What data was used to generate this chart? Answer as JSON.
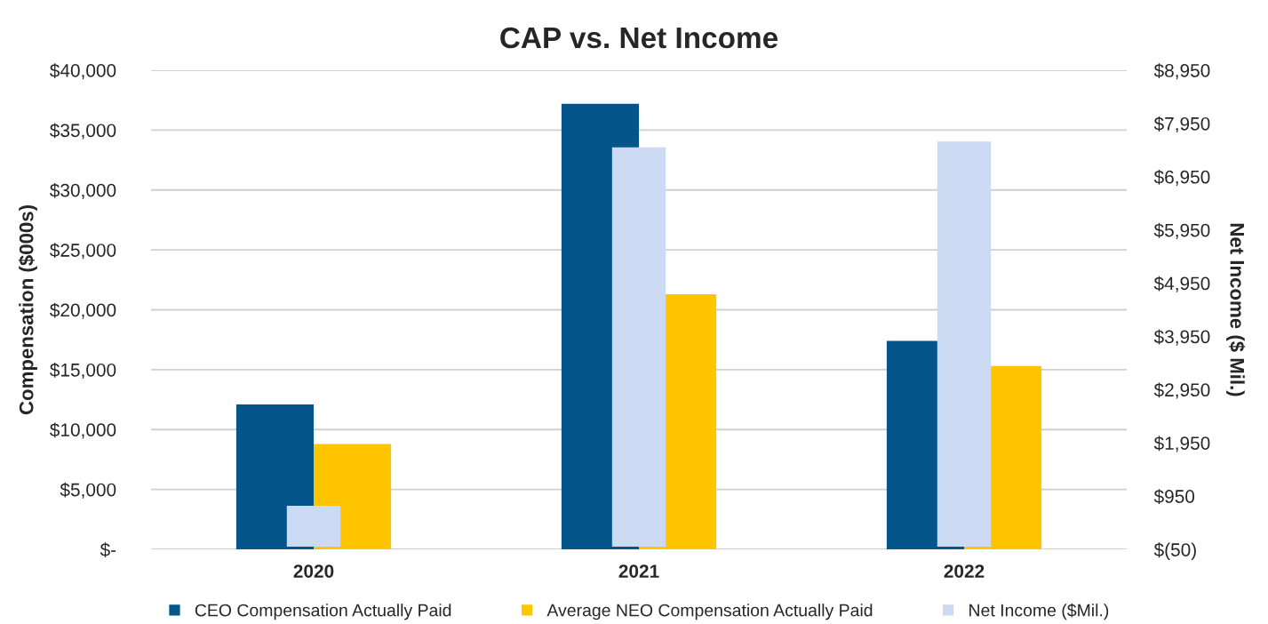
{
  "chart_data": {
    "type": "bar",
    "title": "CAP vs. Net Income",
    "ylabel": "Compensation ($000s)",
    "y2label": "Net Income ($ Mil.)",
    "categories": [
      "2020",
      "2021",
      "2022"
    ],
    "series": [
      {
        "name": "CEO Compensation Actually Paid",
        "color": "#04558a",
        "values": [
          12100,
          37200,
          17400
        ]
      },
      {
        "name": "Average NEO Compensation Actually Paid",
        "color": "#ffc600",
        "values": [
          8800,
          21300,
          15300
        ]
      },
      {
        "name": "Net Income ($Mil.)",
        "color": "#ccdaf3",
        "values": [
          770,
          7500,
          7610
        ],
        "axis": "y2"
      }
    ],
    "ylim": [
      0,
      40000
    ],
    "yticks": [
      {
        "value": 0,
        "label": "$-"
      },
      {
        "value": 5000,
        "label": "$5,000"
      },
      {
        "value": 10000,
        "label": "$10,000"
      },
      {
        "value": 15000,
        "label": "$15,000"
      },
      {
        "value": 20000,
        "label": "$20,000"
      },
      {
        "value": 25000,
        "label": "$25,000"
      },
      {
        "value": 30000,
        "label": "$30,000"
      },
      {
        "value": 35000,
        "label": "$35,000"
      },
      {
        "value": 40000,
        "label": "$40,000"
      }
    ],
    "y2lim": [
      -50,
      8950
    ],
    "y2ticks": [
      {
        "value": -50,
        "label": "$(50)"
      },
      {
        "value": 950,
        "label": "$950"
      },
      {
        "value": 1950,
        "label": "$1,950"
      },
      {
        "value": 2950,
        "label": "$2,950"
      },
      {
        "value": 3950,
        "label": "$3,950"
      },
      {
        "value": 4950,
        "label": "$4,950"
      },
      {
        "value": 5950,
        "label": "$5,950"
      },
      {
        "value": 6950,
        "label": "$6,950"
      },
      {
        "value": 7950,
        "label": "$7,950"
      },
      {
        "value": 8950,
        "label": "$8,950"
      }
    ],
    "grid": "y",
    "legend": "bottom"
  }
}
